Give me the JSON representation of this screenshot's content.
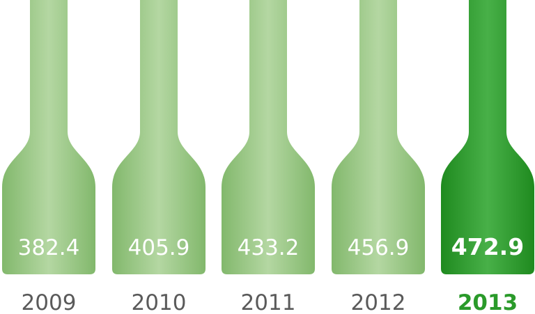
{
  "chart_data": {
    "type": "bar",
    "categories": [
      "2009",
      "2010",
      "2011",
      "2012",
      "2013"
    ],
    "values": [
      382.4,
      405.9,
      433.2,
      456.9,
      472.9
    ],
    "value_labels": [
      "382.4",
      "405.9",
      "433.2",
      "456.9",
      "472.9"
    ],
    "highlight_category": "2013",
    "bar_style": "bottle",
    "colors": {
      "base": "#93c47d",
      "base_shade": "#82b86c",
      "base_light": "#b4d7a2",
      "highlight": "#2a9a2a",
      "highlight_shade": "#1f8a1f",
      "highlight_light": "#48b048",
      "highlight_text": "#2a9a2a",
      "year_text": "#5a5a5a",
      "value_text": "#ffffff"
    },
    "title": "",
    "xlabel": "",
    "ylabel": ""
  }
}
